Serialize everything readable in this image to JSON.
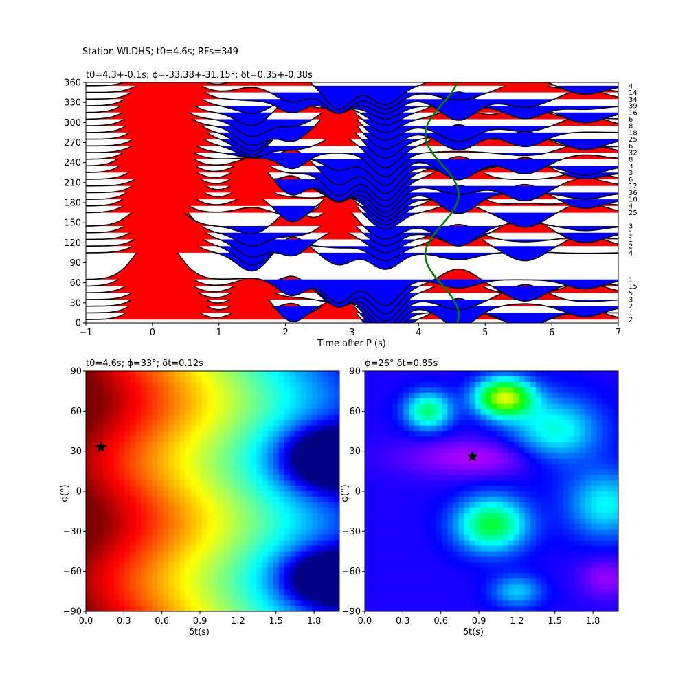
{
  "figure_title": "Station WI.DHS; t0=4.6s; RFs=349",
  "chart_data": [
    {
      "type": "line",
      "name": "receiver-function-stack",
      "title": "t0=4.3+-0.1s; ϕ=-33.38+-31.15°; δt=0.35+-0.38s",
      "xlabel": "Time after P (s)",
      "ylabel": "",
      "xlim": [
        -1,
        7
      ],
      "ylim": [
        0,
        360
      ],
      "xticks": [
        "−1",
        "0",
        "1",
        "2",
        "3",
        "4",
        "5",
        "6",
        "7"
      ],
      "yticks": [
        "0",
        "30",
        "60",
        "90",
        "120",
        "150",
        "180",
        "210",
        "240",
        "270",
        "300",
        "330",
        "360"
      ],
      "fill_colors": {
        "positive": "#ff0000",
        "negative": "#0000ff"
      },
      "curve_color": "#008000",
      "backazimuths": [
        5,
        15,
        25,
        35,
        45,
        55,
        65,
        105,
        115,
        125,
        135,
        145,
        165,
        175,
        185,
        195,
        205,
        215,
        225,
        235,
        245,
        255,
        265,
        275,
        285,
        295,
        305,
        315,
        325,
        335,
        345,
        355
      ],
      "counts": [
        "2",
        "1",
        "2",
        "3",
        "5",
        "15",
        "1",
        "4",
        "2",
        "1",
        "1",
        "3",
        "25",
        "4",
        "10",
        "36",
        "12",
        "6",
        "3",
        "3",
        "8",
        "32",
        "6",
        "25",
        "18",
        "8",
        "6",
        "16",
        "39",
        "34",
        "14",
        "4"
      ],
      "t0_curve": {
        "center": 4.35,
        "amplitude": 0.25,
        "period_deg": 180,
        "phase_deg": -33
      }
    },
    {
      "type": "heatmap",
      "name": "energy-map-left",
      "title": "t0=4.6s; ϕ=33°; δt=0.12s",
      "xlabel": "δt(s)",
      "ylabel": "ϕ(°)",
      "xlim": [
        0,
        2
      ],
      "ylim": [
        -90,
        90
      ],
      "xticks": [
        "0.0",
        "0.3",
        "0.6",
        "0.9",
        "1.2",
        "1.5",
        "1.8"
      ],
      "yticks": [
        "−90",
        "−60",
        "−30",
        "0",
        "30",
        "60",
        "90"
      ],
      "colormap": "jet",
      "best": {
        "dt": 0.12,
        "phi": 33
      }
    },
    {
      "type": "heatmap",
      "name": "energy-map-right",
      "title": "ϕ=26° δt=0.85s",
      "xlabel": "δt(s)",
      "ylabel": "ϕ(°)",
      "xlim": [
        0,
        2
      ],
      "ylim": [
        -90,
        90
      ],
      "xticks": [
        "0.0",
        "0.3",
        "0.6",
        "0.9",
        "1.2",
        "1.5",
        "1.8"
      ],
      "yticks": [
        "−90",
        "−60",
        "−30",
        "0",
        "30",
        "60",
        "90"
      ],
      "colormap": "hsv",
      "best": {
        "dt": 0.85,
        "phi": 26
      }
    }
  ]
}
